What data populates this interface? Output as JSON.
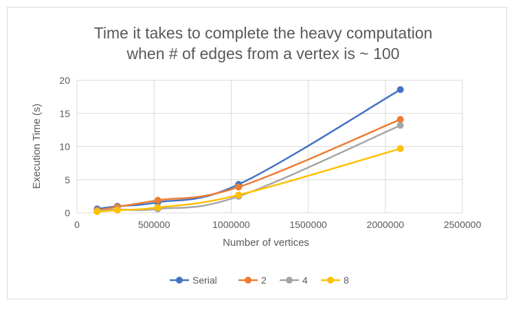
{
  "chart_data": {
    "type": "scatter",
    "title_lines": [
      "Time it takes to complete the heavy computation",
      "when # of edges from a vertex is ~ 100"
    ],
    "xlabel": "Number of vertices",
    "ylabel": "Execution Time (s)",
    "xlim": [
      0,
      2500000
    ],
    "ylim": [
      0,
      20
    ],
    "x_ticks": [
      0,
      500000,
      1000000,
      1500000,
      2000000,
      2500000
    ],
    "y_ticks": [
      0,
      5,
      10,
      15,
      20
    ],
    "x_tick_labels": [
      "0",
      "500000",
      "1000000",
      "1500000",
      "2000000",
      "2500000"
    ],
    "y_tick_labels": [
      "0",
      "5",
      "10",
      "15",
      "20"
    ],
    "grid": true,
    "legend_position": "bottom",
    "series": [
      {
        "name": "Serial",
        "color": "#4472c4",
        "x": [
          131072,
          262144,
          524288,
          1048576,
          2097152
        ],
        "y": [
          0.6,
          1.0,
          1.6,
          4.3,
          18.6
        ]
      },
      {
        "name": "2",
        "color": "#ed7d31",
        "x": [
          131072,
          262144,
          524288,
          1048576,
          2097152
        ],
        "y": [
          0.4,
          0.9,
          1.9,
          3.9,
          14.1
        ]
      },
      {
        "name": "4",
        "color": "#a5a5a5",
        "x": [
          131072,
          262144,
          524288,
          1048576,
          2097152
        ],
        "y": [
          0.3,
          0.5,
          0.6,
          2.5,
          13.2
        ]
      },
      {
        "name": "8",
        "color": "#ffc000",
        "x": [
          131072,
          262144,
          524288,
          1048576,
          2097152
        ],
        "y": [
          0.2,
          0.4,
          0.8,
          2.7,
          9.7
        ]
      }
    ]
  }
}
